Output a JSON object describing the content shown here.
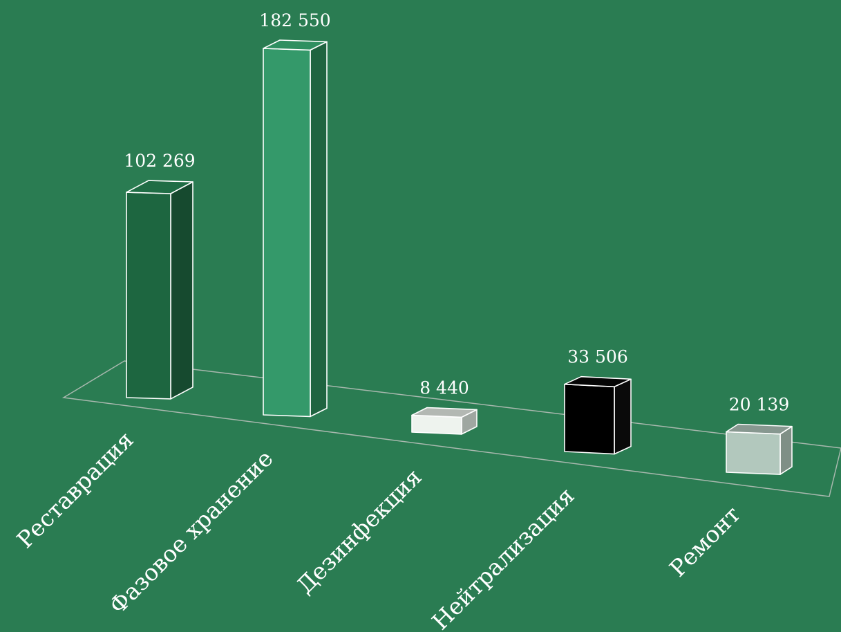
{
  "chart_data": {
    "type": "bar",
    "style": "3d",
    "title": "",
    "xlabel": "",
    "ylabel": "",
    "categories": [
      "Реставрация",
      "Фазовое хранение",
      "Дезинфекция",
      "Нейтрализация",
      "Ремонт"
    ],
    "values": [
      102269,
      182550,
      8440,
      33506,
      20139
    ],
    "value_labels": [
      "102 269",
      "182 550",
      "8 440",
      "33 506",
      "20 139"
    ],
    "colors": [
      {
        "front": "#1d6640",
        "side": "#164a2f",
        "top": "#1f6d45"
      },
      {
        "front": "#34996a",
        "side": "#1f6440",
        "top": "#2f8f60"
      },
      {
        "front": "#eef3ee",
        "side": "#9fa7a1",
        "top": "#b3b8b3"
      },
      {
        "front": "#000000",
        "side": "#0a0a0a",
        "top": "#050505"
      },
      {
        "front": "#b2c8bd",
        "side": "#7f8f86",
        "top": "#879890"
      }
    ],
    "grid": false,
    "legend": "none"
  }
}
